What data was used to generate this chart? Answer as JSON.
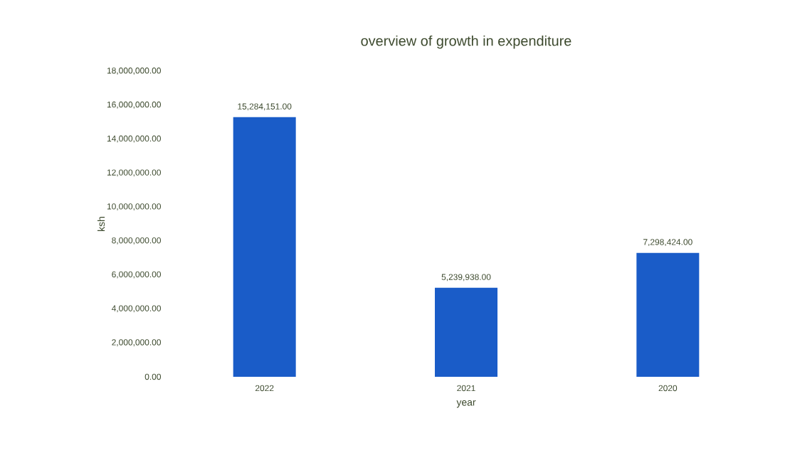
{
  "chart_data": {
    "type": "bar",
    "title": "overview of growth in expenditure",
    "xlabel": "year",
    "ylabel": "ksh",
    "categories": [
      "2022",
      "2021",
      "2020"
    ],
    "values": [
      15284151,
      5239938,
      7298424
    ],
    "value_labels": [
      "15,284,151.00",
      "5,239,938.00",
      "7,298,424.00"
    ],
    "color": "#1a5cc8",
    "ylim": [
      0,
      18000000
    ],
    "yticks": [
      {
        "value": 0,
        "label": "0.00"
      },
      {
        "value": 2000000,
        "label": "2,000,000.00"
      },
      {
        "value": 4000000,
        "label": "4,000,000.00"
      },
      {
        "value": 6000000,
        "label": "6,000,000.00"
      },
      {
        "value": 8000000,
        "label": "8,000,000.00"
      },
      {
        "value": 10000000,
        "label": "10,000,000.00"
      },
      {
        "value": 12000000,
        "label": "12,000,000.00"
      },
      {
        "value": 14000000,
        "label": "14,000,000.00"
      },
      {
        "value": 16000000,
        "label": "16,000,000.00"
      },
      {
        "value": 18000000,
        "label": "18,000,000.00"
      }
    ],
    "grid": false
  }
}
